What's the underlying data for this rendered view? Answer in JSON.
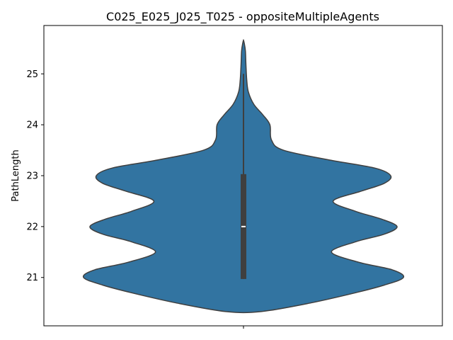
{
  "chart_data": {
    "type": "violin",
    "title": "C025_E025_J025_T025 - oppositeMultipleAgents",
    "xlabel": "",
    "ylabel": "PathLength",
    "categories": [
      ""
    ],
    "ylim": [
      20.05,
      25.95
    ],
    "yticks": [
      "21",
      "22",
      "23",
      "24",
      "25"
    ],
    "grid": false,
    "colors": {
      "body": "#3274a1",
      "edge": "#3f3f3f",
      "box": "#3f3f3f",
      "median": "#ffffff"
    },
    "density_profile": [
      {
        "y": 20.33,
        "w": 0.11
      },
      {
        "y": 20.5,
        "w": 0.42
      },
      {
        "y": 20.7,
        "w": 0.7
      },
      {
        "y": 20.85,
        "w": 0.88
      },
      {
        "y": 21.0,
        "w": 1.0
      },
      {
        "y": 21.15,
        "w": 0.93
      },
      {
        "y": 21.3,
        "w": 0.72
      },
      {
        "y": 21.5,
        "w": 0.55
      },
      {
        "y": 21.7,
        "w": 0.7
      },
      {
        "y": 21.85,
        "w": 0.88
      },
      {
        "y": 22.0,
        "w": 0.96
      },
      {
        "y": 22.15,
        "w": 0.86
      },
      {
        "y": 22.3,
        "w": 0.7
      },
      {
        "y": 22.5,
        "w": 0.56
      },
      {
        "y": 22.7,
        "w": 0.74
      },
      {
        "y": 22.85,
        "w": 0.88
      },
      {
        "y": 23.0,
        "w": 0.92
      },
      {
        "y": 23.15,
        "w": 0.82
      },
      {
        "y": 23.3,
        "w": 0.55
      },
      {
        "y": 23.5,
        "w": 0.25
      },
      {
        "y": 23.7,
        "w": 0.175
      },
      {
        "y": 24.0,
        "w": 0.165
      },
      {
        "y": 24.2,
        "w": 0.12
      },
      {
        "y": 24.4,
        "w": 0.065
      },
      {
        "y": 24.65,
        "w": 0.03
      },
      {
        "y": 24.9,
        "w": 0.02
      },
      {
        "y": 25.2,
        "w": 0.015
      },
      {
        "y": 25.45,
        "w": 0.012
      },
      {
        "y": 25.6,
        "w": 0.005
      },
      {
        "y": 25.66,
        "w": 0.0
      }
    ],
    "box": {
      "q1": 20.97,
      "median": 22.0,
      "q3": 23.03,
      "whisker_low": 20.97,
      "whisker_high": 25.0
    }
  }
}
